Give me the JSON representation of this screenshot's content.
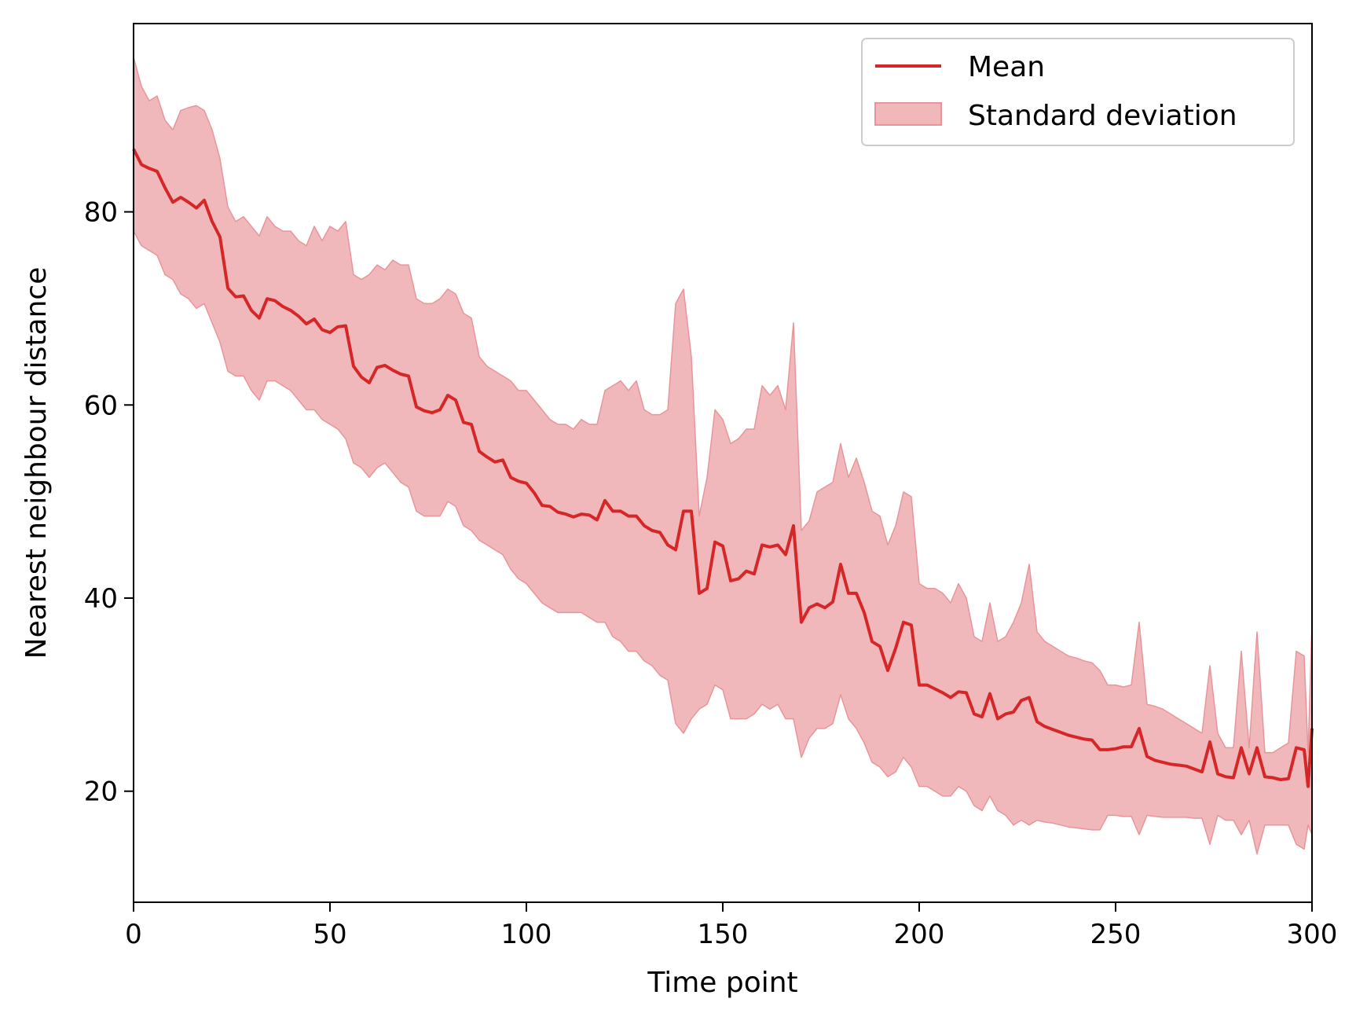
{
  "chart_data": {
    "type": "line",
    "title": "",
    "xlabel": "Time point",
    "ylabel": "Nearest neighbour distance",
    "xlim": [
      0,
      300
    ],
    "ylim": [
      8.5,
      99.5
    ],
    "xticks": [
      0,
      50,
      100,
      150,
      200,
      250,
      300
    ],
    "yticks": [
      20,
      40,
      60,
      80
    ],
    "grid": false,
    "legend_position": "top-right",
    "colors": {
      "mean": "#d62728",
      "band_fill": "#f0b8bb",
      "band_edge": "#e8959a"
    },
    "series": [
      {
        "name": "Mean",
        "kind": "line",
        "x": [
          0,
          2,
          4,
          6,
          8,
          10,
          12,
          14,
          16,
          18,
          20,
          22,
          24,
          26,
          28,
          30,
          32,
          34,
          36,
          38,
          40,
          42,
          44,
          46,
          48,
          50,
          52,
          54,
          56,
          58,
          60,
          62,
          64,
          66,
          68,
          70,
          72,
          74,
          76,
          78,
          80,
          82,
          84,
          86,
          88,
          90,
          92,
          94,
          96,
          98,
          100,
          102,
          104,
          106,
          108,
          110,
          112,
          114,
          116,
          118,
          120,
          122,
          124,
          126,
          128,
          130,
          132,
          134,
          136,
          138,
          140,
          142,
          144,
          146,
          148,
          150,
          152,
          154,
          156,
          158,
          160,
          162,
          164,
          166,
          168,
          170,
          172,
          174,
          176,
          178,
          180,
          182,
          184,
          186,
          188,
          190,
          192,
          194,
          196,
          198,
          200,
          202,
          204,
          206,
          208,
          210,
          212,
          214,
          216,
          218,
          220,
          222,
          224,
          226,
          228,
          230,
          232,
          234,
          236,
          238,
          240,
          242,
          244,
          246,
          248,
          250,
          252,
          254,
          256,
          258,
          260,
          262,
          264,
          266,
          268,
          270,
          272,
          274,
          276,
          278,
          280,
          282,
          284,
          286,
          288,
          290,
          292,
          294,
          296,
          298,
          299,
          300
        ],
        "y": [
          86.5,
          84.9,
          84.5,
          84.2,
          82.5,
          81.0,
          81.5,
          81.0,
          80.4,
          81.2,
          79.0,
          77.4,
          72.1,
          71.2,
          71.3,
          69.8,
          69.0,
          71.0,
          70.8,
          70.2,
          69.8,
          69.2,
          68.4,
          68.9,
          67.8,
          67.5,
          68.1,
          68.2,
          64.0,
          62.9,
          62.3,
          63.9,
          64.1,
          63.6,
          63.2,
          63.0,
          59.8,
          59.4,
          59.2,
          59.5,
          61.0,
          60.5,
          58.2,
          58.0,
          55.2,
          54.6,
          54.1,
          54.3,
          52.5,
          52.1,
          51.9,
          50.9,
          49.6,
          49.5,
          48.9,
          48.7,
          48.4,
          48.7,
          48.6,
          48.1,
          50.1,
          49.0,
          49.0,
          48.5,
          48.5,
          47.5,
          47.0,
          46.8,
          45.5,
          45.0,
          49.0,
          49.0,
          40.5,
          41.0,
          45.8,
          45.4,
          41.8,
          42.0,
          42.8,
          42.5,
          45.5,
          45.3,
          45.5,
          44.5,
          47.5,
          37.5,
          39.0,
          39.4,
          39.0,
          39.6,
          43.5,
          40.5,
          40.5,
          38.5,
          35.5,
          35.0,
          32.5,
          34.8,
          37.5,
          37.2,
          31.0,
          31.0,
          30.6,
          30.2,
          29.7,
          30.3,
          30.2,
          28.0,
          27.7,
          30.1,
          27.5,
          28.0,
          28.2,
          29.4,
          29.7,
          27.2,
          26.7,
          26.4,
          26.1,
          25.8,
          25.6,
          25.4,
          25.3,
          24.3,
          24.3,
          24.4,
          24.6,
          24.6,
          26.5,
          23.6,
          23.2,
          23.0,
          22.8,
          22.7,
          22.6,
          22.3,
          22.0,
          25.1,
          21.8,
          21.5,
          21.4,
          24.5,
          21.8,
          24.5,
          21.5,
          21.4,
          21.2,
          21.3,
          24.5,
          24.3,
          20.5,
          26.5
        ]
      },
      {
        "name": "Standard deviation",
        "kind": "band",
        "x": [
          0,
          2,
          4,
          6,
          8,
          10,
          12,
          14,
          16,
          18,
          20,
          22,
          24,
          26,
          28,
          30,
          32,
          34,
          36,
          38,
          40,
          42,
          44,
          46,
          48,
          50,
          52,
          54,
          56,
          58,
          60,
          62,
          64,
          66,
          68,
          70,
          72,
          74,
          76,
          78,
          80,
          82,
          84,
          86,
          88,
          90,
          92,
          94,
          96,
          98,
          100,
          102,
          104,
          106,
          108,
          110,
          112,
          114,
          116,
          118,
          120,
          122,
          124,
          126,
          128,
          130,
          132,
          134,
          136,
          138,
          140,
          142,
          144,
          146,
          148,
          150,
          152,
          154,
          156,
          158,
          160,
          162,
          164,
          166,
          168,
          170,
          172,
          174,
          176,
          178,
          180,
          182,
          184,
          186,
          188,
          190,
          192,
          194,
          196,
          198,
          200,
          202,
          204,
          206,
          208,
          210,
          212,
          214,
          216,
          218,
          220,
          222,
          224,
          226,
          228,
          230,
          232,
          234,
          236,
          238,
          240,
          242,
          244,
          246,
          248,
          250,
          252,
          254,
          256,
          258,
          260,
          262,
          264,
          266,
          268,
          270,
          272,
          274,
          276,
          278,
          280,
          282,
          284,
          286,
          288,
          290,
          292,
          294,
          296,
          298,
          299,
          300
        ],
        "upper": [
          96.0,
          93.0,
          91.5,
          92.0,
          89.5,
          88.5,
          90.5,
          90.8,
          91.0,
          90.5,
          88.5,
          85.5,
          80.5,
          79.0,
          79.5,
          78.5,
          77.5,
          79.5,
          78.5,
          78.0,
          78.0,
          77.0,
          76.5,
          78.5,
          77.0,
          78.5,
          78.0,
          79.0,
          73.5,
          73.0,
          73.5,
          74.5,
          74.0,
          75.0,
          74.5,
          74.5,
          71.0,
          70.5,
          70.5,
          71.0,
          72.0,
          71.5,
          69.5,
          69.0,
          65.0,
          64.0,
          63.5,
          63.0,
          62.5,
          61.5,
          61.5,
          60.5,
          59.5,
          58.5,
          58.0,
          58.0,
          57.5,
          58.5,
          58.0,
          58.0,
          61.5,
          62.0,
          62.5,
          61.5,
          62.5,
          59.5,
          59.0,
          59.0,
          59.5,
          70.5,
          72.0,
          65.0,
          48.5,
          52.5,
          59.5,
          58.5,
          56.0,
          56.5,
          57.5,
          57.5,
          62.0,
          61.0,
          62.0,
          59.5,
          68.5,
          47.0,
          48.0,
          51.0,
          51.5,
          52.0,
          56.0,
          52.5,
          54.5,
          52.0,
          49.0,
          48.5,
          45.5,
          47.5,
          51.0,
          50.5,
          41.5,
          41.0,
          41.0,
          40.5,
          39.5,
          41.5,
          40.0,
          36.0,
          35.5,
          39.5,
          35.5,
          36.0,
          37.5,
          39.5,
          43.5,
          36.5,
          35.5,
          35.0,
          34.5,
          34.0,
          33.8,
          33.5,
          33.3,
          32.5,
          31.0,
          31.0,
          30.8,
          31.0,
          37.5,
          29.0,
          28.8,
          28.5,
          28.0,
          27.5,
          27.0,
          26.5,
          26.0,
          33.0,
          26.0,
          24.5,
          24.5,
          34.5,
          24.5,
          36.5,
          24.0,
          24.0,
          24.5,
          25.0,
          34.5,
          34.0,
          24.0,
          37.5
        ],
        "lower": [
          78.0,
          76.5,
          76.0,
          75.5,
          73.5,
          73.0,
          71.5,
          71.0,
          70.0,
          70.5,
          68.5,
          66.5,
          63.5,
          63.0,
          63.0,
          61.5,
          60.5,
          62.5,
          62.5,
          62.0,
          61.5,
          60.5,
          59.5,
          59.5,
          58.5,
          58.0,
          57.5,
          56.5,
          54.0,
          53.5,
          52.5,
          53.5,
          54.0,
          53.0,
          52.0,
          51.5,
          49.0,
          48.5,
          48.5,
          48.5,
          50.0,
          49.5,
          47.5,
          47.0,
          46.0,
          45.5,
          45.0,
          44.5,
          43.0,
          42.0,
          41.5,
          40.5,
          39.5,
          39.0,
          38.5,
          38.5,
          38.5,
          38.5,
          38.0,
          37.5,
          37.5,
          36.0,
          35.5,
          34.5,
          34.5,
          33.5,
          33.0,
          32.0,
          31.5,
          27.0,
          26.0,
          27.5,
          28.5,
          29.0,
          31.0,
          30.5,
          27.5,
          27.5,
          27.5,
          28.0,
          29.0,
          28.5,
          29.0,
          27.5,
          27.5,
          23.5,
          25.5,
          26.5,
          26.5,
          27.0,
          30.0,
          27.5,
          26.5,
          25.0,
          23.0,
          22.5,
          21.5,
          22.0,
          23.5,
          22.5,
          20.5,
          20.5,
          20.0,
          19.5,
          19.5,
          20.5,
          20.0,
          18.5,
          18.0,
          19.5,
          18.0,
          17.5,
          16.5,
          17.0,
          16.5,
          17.0,
          16.8,
          16.7,
          16.5,
          16.3,
          16.2,
          16.1,
          16.0,
          16.0,
          17.5,
          17.5,
          17.4,
          17.4,
          15.5,
          17.5,
          17.4,
          17.3,
          17.3,
          17.3,
          17.3,
          17.2,
          17.2,
          14.5,
          17.5,
          17.0,
          17.0,
          15.5,
          17.0,
          13.5,
          16.5,
          16.5,
          16.5,
          16.5,
          14.5,
          14.0,
          16.5,
          15.5
        ]
      }
    ]
  }
}
